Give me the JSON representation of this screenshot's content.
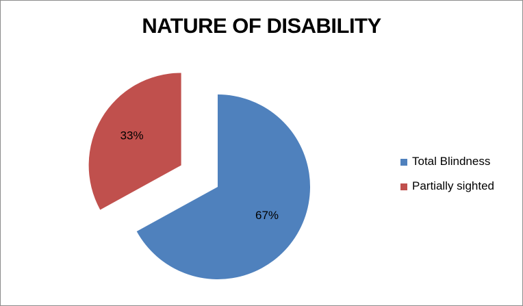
{
  "chart_data": {
    "type": "pie",
    "title": "NATURE OF DISABILITY",
    "slices": [
      {
        "name": "Total Blindness",
        "value": 67,
        "label": "67%",
        "color": "#4f81bd",
        "exploded": false
      },
      {
        "name": "Partially sighted",
        "value": 33,
        "label": "33%",
        "color": "#c0504d",
        "exploded": true
      }
    ],
    "legend_position": "right"
  }
}
